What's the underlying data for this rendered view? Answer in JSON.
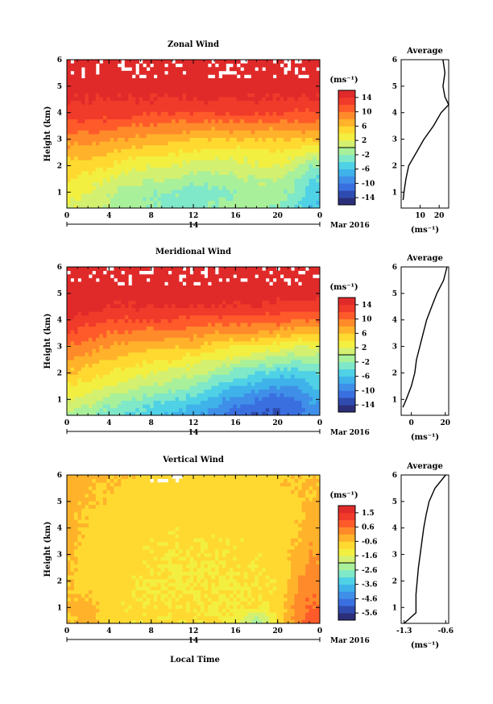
{
  "common": {
    "x_ticks": [
      "0",
      "4",
      "8",
      "12",
      "16",
      "20",
      "0"
    ],
    "y_ticks": [
      "1",
      "2",
      "3",
      "4",
      "5",
      "6"
    ],
    "ylabel": "Height (km)",
    "date_day": "14",
    "date_month": "Mar 2016",
    "xlabel": "Local Time",
    "cb_unit": "(ms⁻¹)",
    "avg_title": "Average",
    "avg_xlabel": "(ms⁻¹)"
  },
  "chart_data": [
    {
      "type": "heatmap",
      "title": "Zonal Wind",
      "xlabel": "",
      "ylabel": "Height (km)",
      "xlim": [
        0,
        24
      ],
      "ylim": [
        0.4,
        6
      ],
      "colorbar": {
        "ticks": [
          "14",
          "10",
          "6",
          "2",
          "-2",
          "-6",
          "-10",
          "-14"
        ],
        "min": -16,
        "max": 16,
        "palette": [
          "#2b2f7a",
          "#2f4bb0",
          "#3a6fe0",
          "#3f8fe8",
          "#3fb2ea",
          "#4fd1e6",
          "#7fe8c8",
          "#a9f09a",
          "#d3f070",
          "#f3ef40",
          "#ffd930",
          "#ffb22a",
          "#ff8a2a",
          "#ff5a2a",
          "#f03a2a",
          "#e02a2a"
        ]
      },
      "time_height_profile": {
        "hours": [
          0,
          2,
          4,
          6,
          8,
          10,
          12,
          14,
          16,
          18,
          20,
          22,
          23
        ],
        "heights_km": [
          0.5,
          1,
          1.5,
          2,
          2.5,
          3,
          3.5,
          4,
          4.5,
          5,
          5.5,
          6
        ],
        "values": [
          [
            2,
            3,
            4,
            5,
            7,
            9,
            11,
            13,
            14,
            15,
            15,
            15
          ],
          [
            1,
            2,
            3,
            5,
            7,
            9,
            11,
            13,
            14,
            15,
            15,
            15
          ],
          [
            0,
            0,
            2,
            4,
            6,
            8,
            11,
            13,
            14,
            15,
            15,
            15
          ],
          [
            -1,
            -1,
            1,
            3,
            5,
            8,
            10,
            13,
            14,
            15,
            15,
            15
          ],
          [
            -2,
            -2,
            0,
            2,
            5,
            7,
            10,
            12,
            14,
            15,
            15,
            15
          ],
          [
            -3,
            -2,
            0,
            2,
            4,
            7,
            9,
            12,
            14,
            15,
            15,
            15
          ],
          [
            -3,
            -3,
            -1,
            1,
            4,
            6,
            9,
            12,
            14,
            15,
            15,
            15
          ],
          [
            -2,
            -3,
            -1,
            1,
            3,
            6,
            9,
            12,
            14,
            15,
            15,
            15
          ],
          [
            -1,
            -2,
            0,
            1,
            3,
            6,
            9,
            12,
            14,
            15,
            15,
            15
          ],
          [
            -1,
            -1,
            0,
            2,
            3,
            6,
            9,
            12,
            14,
            15,
            15,
            15
          ],
          [
            -2,
            -1,
            0,
            2,
            4,
            6,
            9,
            12,
            14,
            15,
            15,
            15
          ],
          [
            -4,
            -3,
            -2,
            0,
            3,
            6,
            9,
            12,
            14,
            15,
            15,
            15
          ],
          [
            -6,
            -5,
            -4,
            -2,
            2,
            6,
            9,
            12,
            14,
            15,
            15,
            15
          ]
        ]
      },
      "average": {
        "title": "Average",
        "xlabel": "(ms⁻¹)",
        "xlim": [
          0,
          25
        ],
        "x_ticks": [
          "10",
          "20"
        ],
        "x_tick_values": [
          10,
          20
        ],
        "heights_km": [
          0.7,
          1,
          1.5,
          2,
          2.5,
          3,
          3.5,
          4,
          4.3,
          4.6,
          5,
          5.5,
          6
        ],
        "values": [
          1,
          1.5,
          2.5,
          4,
          8,
          12,
          17,
          21,
          25,
          23,
          22,
          23,
          22
        ]
      }
    },
    {
      "type": "heatmap",
      "title": "Meridional Wind",
      "xlabel": "",
      "ylabel": "Height (km)",
      "xlim": [
        0,
        24
      ],
      "ylim": [
        0.4,
        6
      ],
      "colorbar": {
        "ticks": [
          "14",
          "10",
          "6",
          "2",
          "-2",
          "-6",
          "-10",
          "-14"
        ],
        "min": -16,
        "max": 16,
        "palette": [
          "#2b2f7a",
          "#2f4bb0",
          "#3a6fe0",
          "#3f8fe8",
          "#3fb2ea",
          "#4fd1e6",
          "#7fe8c8",
          "#a9f09a",
          "#d3f070",
          "#f3ef40",
          "#ffd930",
          "#ffb22a",
          "#ff8a2a",
          "#ff5a2a",
          "#f03a2a",
          "#e02a2a"
        ]
      },
      "time_height_profile": {
        "hours": [
          0,
          2,
          4,
          6,
          8,
          10,
          12,
          14,
          16,
          18,
          20,
          22,
          23
        ],
        "heights_km": [
          0.5,
          1,
          1.5,
          2,
          2.5,
          3,
          3.5,
          4,
          4.5,
          5,
          5.5,
          6
        ],
        "values": [
          [
            0,
            2,
            4,
            6,
            8,
            10,
            12,
            14,
            15,
            15,
            15,
            15
          ],
          [
            -1,
            1,
            3,
            5,
            7,
            9,
            11,
            13,
            15,
            15,
            15,
            15
          ],
          [
            -3,
            -1,
            2,
            4,
            6,
            8,
            10,
            12,
            14,
            15,
            15,
            15
          ],
          [
            -4,
            -2,
            1,
            3,
            5,
            7,
            10,
            12,
            14,
            15,
            15,
            15
          ],
          [
            -5,
            -3,
            0,
            2,
            4,
            7,
            9,
            12,
            14,
            15,
            15,
            15
          ],
          [
            -6,
            -4,
            -1,
            1,
            4,
            6,
            9,
            12,
            14,
            15,
            15,
            15
          ],
          [
            -7,
            -5,
            -2,
            1,
            3,
            6,
            9,
            11,
            14,
            15,
            15,
            15
          ],
          [
            -9,
            -7,
            -4,
            -1,
            2,
            5,
            8,
            11,
            14,
            15,
            15,
            15
          ],
          [
            -11,
            -9,
            -6,
            -3,
            1,
            4,
            8,
            11,
            14,
            15,
            15,
            15
          ],
          [
            -12,
            -10,
            -7,
            -4,
            0,
            4,
            8,
            11,
            14,
            15,
            15,
            15
          ],
          [
            -12,
            -11,
            -8,
            -5,
            -1,
            3,
            7,
            11,
            13,
            15,
            15,
            15
          ],
          [
            -11,
            -10,
            -8,
            -5,
            -2,
            2,
            6,
            10,
            13,
            15,
            15,
            15
          ],
          [
            -9,
            -8,
            -6,
            -4,
            -1,
            2,
            6,
            10,
            13,
            15,
            15,
            15
          ]
        ]
      },
      "average": {
        "title": "Average",
        "xlabel": "(ms⁻¹)",
        "xlim": [
          -6,
          22
        ],
        "x_ticks": [
          "0",
          "20"
        ],
        "x_tick_values": [
          0,
          20
        ],
        "heights_km": [
          0.7,
          1,
          1.5,
          2,
          2.5,
          3,
          3.5,
          4,
          4.5,
          5,
          5.5,
          6
        ],
        "values": [
          -5,
          -3,
          0,
          2,
          3,
          5,
          7,
          9,
          12,
          15,
          19,
          21
        ]
      }
    },
    {
      "type": "heatmap",
      "title": "Vertical Wind",
      "xlabel": "Local Time",
      "ylabel": "Height (km)",
      "xlim": [
        0,
        24
      ],
      "ylim": [
        0.4,
        6
      ],
      "colorbar": {
        "ticks": [
          "1.5",
          "0.6",
          "-0.6",
          "-1.6",
          "-2.6",
          "-3.6",
          "-4.6",
          "-5.6"
        ],
        "min": -6.2,
        "max": 2,
        "palette": [
          "#2b2f7a",
          "#2f4bb0",
          "#3a6fe0",
          "#3f8fe8",
          "#3fb2ea",
          "#4fd1e6",
          "#7fe8c8",
          "#a9f09a",
          "#d3f070",
          "#f3ef40",
          "#ffd930",
          "#ffb22a",
          "#ff8a2a",
          "#ff5a2a",
          "#f03a2a",
          "#e02a2a"
        ]
      },
      "time_height_profile": {
        "hours": [
          0,
          2,
          4,
          6,
          8,
          10,
          12,
          14,
          16,
          18,
          20,
          22,
          23
        ],
        "heights_km": [
          0.5,
          1,
          1.5,
          2,
          2.5,
          3,
          3.5,
          4,
          4.5,
          5,
          5.5,
          6
        ],
        "values": [
          [
            -0.6,
            -0.5,
            -0.5,
            -0.5,
            -0.5,
            -0.4,
            -0.4,
            -0.4,
            -0.4,
            -0.4,
            -0.4,
            -0.4
          ],
          [
            -0.4,
            -0.3,
            -0.6,
            -0.8,
            -0.8,
            -0.8,
            -0.7,
            -0.6,
            -0.6,
            -0.5,
            -0.5,
            -0.4
          ],
          [
            -0.9,
            -0.9,
            -0.9,
            -0.9,
            -0.9,
            -0.9,
            -0.9,
            -0.8,
            -0.8,
            -0.7,
            -0.6,
            -0.5
          ],
          [
            -1.0,
            -1.0,
            -1.0,
            -1.0,
            -0.9,
            -0.9,
            -0.9,
            -0.9,
            -0.8,
            -0.8,
            -0.7,
            -0.6
          ],
          [
            -1.0,
            -1.0,
            -1.1,
            -1.1,
            -1.0,
            -1.0,
            -1.0,
            -0.9,
            -0.9,
            -0.8,
            -0.8,
            -0.7
          ],
          [
            -1.0,
            -1.0,
            -1.1,
            -1.1,
            -1.1,
            -1.1,
            -1.0,
            -1.0,
            -0.9,
            -0.9,
            -0.8,
            -0.7
          ],
          [
            -1.0,
            -1.1,
            -1.1,
            -1.1,
            -1.1,
            -1.0,
            -1.0,
            -1.0,
            -0.9,
            -0.9,
            -0.8,
            -0.7
          ],
          [
            -1.0,
            -1.1,
            -1.1,
            -1.1,
            -1.1,
            -1.1,
            -1.0,
            -1.0,
            -0.9,
            -0.9,
            -0.8,
            -0.7
          ],
          [
            -1.2,
            -1.1,
            -1.1,
            -1.1,
            -1.0,
            -1.0,
            -1.0,
            -0.9,
            -0.9,
            -0.8,
            -0.8,
            -0.7
          ],
          [
            -2.5,
            -1.1,
            -1.0,
            -1.0,
            -1.0,
            -1.0,
            -0.9,
            -0.9,
            -0.9,
            -0.8,
            -0.7,
            -0.6
          ],
          [
            -1.0,
            -1.0,
            -1.0,
            -1.0,
            -1.0,
            -0.9,
            -0.9,
            -0.9,
            -0.8,
            -0.8,
            -0.7,
            -0.6
          ],
          [
            0.3,
            0.2,
            0.0,
            -0.1,
            -0.2,
            -0.3,
            -0.5,
            -0.6,
            -0.7,
            -0.7,
            -0.6,
            -0.6
          ],
          [
            0.6,
            0.5,
            0.4,
            0.3,
            0.1,
            0.0,
            -0.2,
            -0.3,
            -0.4,
            -0.5,
            -0.5,
            -0.5
          ]
        ]
      },
      "average": {
        "title": "Average",
        "xlabel": "(ms⁻¹)",
        "xlim": [
          -1.35,
          -0.55
        ],
        "x_ticks": [
          "-1.3",
          "-0.6"
        ],
        "x_tick_values": [
          -1.3,
          -0.6
        ],
        "heights_km": [
          0.4,
          0.6,
          0.8,
          1,
          1.5,
          2,
          2.5,
          3,
          3.5,
          4,
          4.5,
          5,
          5.5,
          6
        ],
        "values": [
          -1.3,
          -1.2,
          -1.1,
          -1.1,
          -1.1,
          -1.08,
          -1.06,
          -1.03,
          -1.0,
          -0.97,
          -0.93,
          -0.88,
          -0.78,
          -0.6
        ]
      }
    }
  ]
}
